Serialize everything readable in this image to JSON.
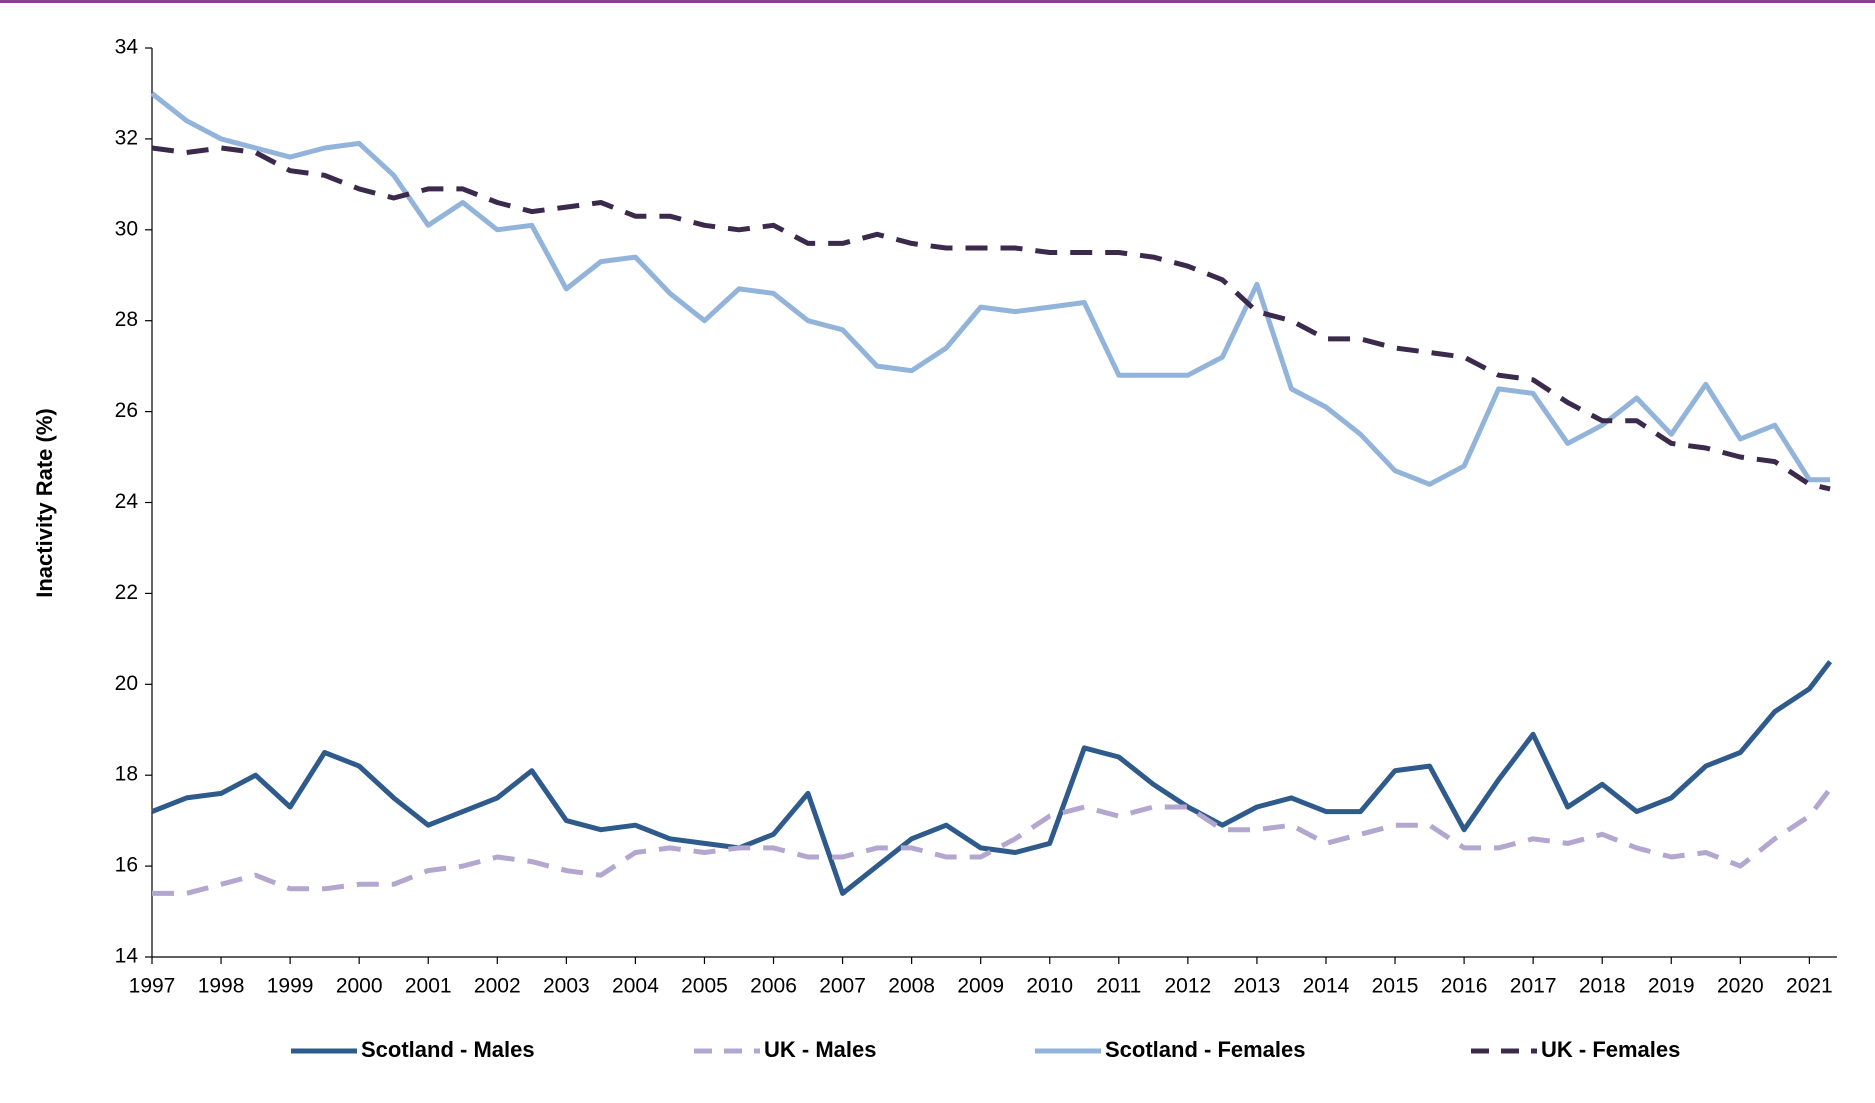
{
  "chart_data": {
    "type": "line",
    "ylabel": "Inactivity Rate (%)",
    "x": [
      1997,
      1997.5,
      1998,
      1998.5,
      1999,
      1999.5,
      2000,
      2000.5,
      2001,
      2001.5,
      2002,
      2002.5,
      2003,
      2003.5,
      2004,
      2004.5,
      2005,
      2005.5,
      2006,
      2006.5,
      2007,
      2007.5,
      2008,
      2008.5,
      2009,
      2009.5,
      2010,
      2010.5,
      2011,
      2011.5,
      2012,
      2012.5,
      2013,
      2013.5,
      2014,
      2014.5,
      2015,
      2015.5,
      2016,
      2016.5,
      2017,
      2017.5,
      2018,
      2018.5,
      2019,
      2019.5,
      2020,
      2020.5,
      2021,
      2021.3
    ],
    "series": [
      {
        "name": "Scotland - Males",
        "color": "#2e5b8c",
        "dashed": false,
        "values": [
          17.2,
          17.5,
          17.6,
          18.0,
          17.3,
          18.5,
          18.2,
          17.5,
          16.9,
          17.2,
          17.5,
          18.1,
          17.0,
          16.8,
          16.9,
          16.6,
          16.5,
          16.4,
          16.7,
          17.6,
          15.4,
          16.0,
          16.6,
          16.9,
          16.4,
          16.3,
          16.5,
          18.6,
          18.4,
          17.8,
          17.3,
          16.9,
          17.3,
          17.5,
          17.2,
          17.2,
          18.1,
          18.2,
          16.8,
          17.9,
          18.9,
          17.3,
          17.8,
          17.2,
          17.5,
          18.2,
          18.5,
          19.4,
          19.9,
          20.5
        ]
      },
      {
        "name": "UK - Males",
        "color": "#b4a7cf",
        "dashed": true,
        "values": [
          15.4,
          15.4,
          15.6,
          15.8,
          15.5,
          15.5,
          15.6,
          15.6,
          15.9,
          16.0,
          16.2,
          16.1,
          15.9,
          15.8,
          16.3,
          16.4,
          16.3,
          16.4,
          16.4,
          16.2,
          16.2,
          16.4,
          16.4,
          16.2,
          16.2,
          16.6,
          17.1,
          17.3,
          17.1,
          17.3,
          17.3,
          16.8,
          16.8,
          16.9,
          16.5,
          16.7,
          16.9,
          16.9,
          16.4,
          16.4,
          16.6,
          16.5,
          16.7,
          16.4,
          16.2,
          16.3,
          16.0,
          16.6,
          17.1,
          17.7
        ]
      },
      {
        "name": "Scotland - Females",
        "color": "#93b4da",
        "dashed": false,
        "values": [
          33.0,
          32.4,
          32.0,
          31.8,
          31.6,
          31.8,
          31.9,
          31.2,
          30.1,
          30.6,
          30.0,
          30.1,
          28.7,
          29.3,
          29.4,
          28.6,
          28.0,
          28.7,
          28.6,
          28.0,
          27.8,
          27.0,
          26.9,
          27.4,
          28.3,
          28.2,
          28.3,
          28.4,
          26.8,
          26.8,
          26.8,
          27.2,
          28.8,
          26.5,
          26.1,
          25.5,
          24.7,
          24.4,
          24.8,
          26.5,
          26.4,
          25.3,
          25.7,
          26.3,
          25.5,
          26.6,
          25.4,
          25.7,
          24.5,
          24.5
        ]
      },
      {
        "name": "UK - Females",
        "color": "#3b2a4b",
        "dashed": true,
        "values": [
          31.8,
          31.7,
          31.8,
          31.7,
          31.3,
          31.2,
          30.9,
          30.7,
          30.9,
          30.9,
          30.6,
          30.4,
          30.5,
          30.6,
          30.3,
          30.3,
          30.1,
          30.0,
          30.1,
          29.7,
          29.7,
          29.9,
          29.7,
          29.6,
          29.6,
          29.6,
          29.5,
          29.5,
          29.5,
          29.4,
          29.2,
          28.9,
          28.2,
          28.0,
          27.6,
          27.6,
          27.4,
          27.3,
          27.2,
          26.8,
          26.7,
          26.2,
          25.8,
          25.8,
          25.3,
          25.2,
          25.0,
          24.9,
          24.4,
          24.3
        ]
      }
    ],
    "xlim": [
      1997,
      2021.4
    ],
    "xticks": [
      1997,
      1998,
      1999,
      2000,
      2001,
      2002,
      2003,
      2004,
      2005,
      2006,
      2007,
      2008,
      2009,
      2010,
      2011,
      2012,
      2013,
      2014,
      2015,
      2016,
      2017,
      2018,
      2019,
      2020,
      2021
    ],
    "ylim": [
      14,
      34
    ],
    "yticks": [
      14,
      16,
      18,
      20,
      22,
      24,
      26,
      28,
      30,
      32,
      34
    ],
    "legend": "bottom"
  }
}
